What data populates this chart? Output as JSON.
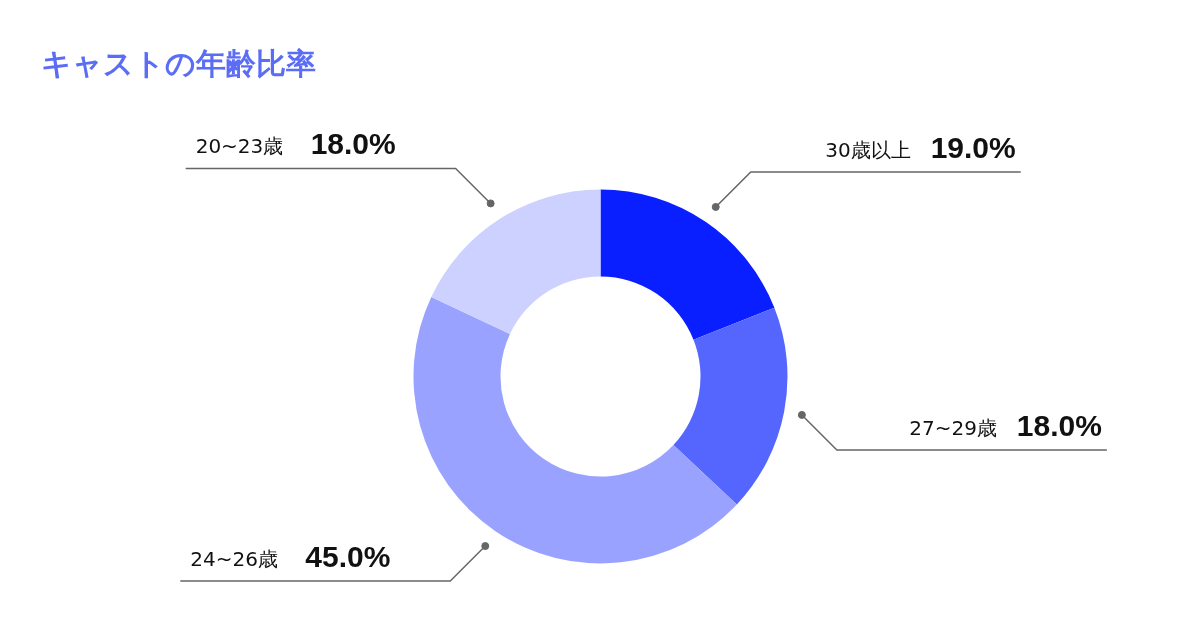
{
  "chart_data": {
    "type": "donut",
    "title": "キャストの年齢比率",
    "categories": [
      "30歳以上",
      "27~29歳",
      "24~26歳",
      "20~23歳"
    ],
    "values": [
      19,
      18,
      45,
      18
    ],
    "colors": [
      "#0a1fff",
      "#5566ff",
      "#99a3ff",
      "#ccd1ff"
    ],
    "value_labels": [
      "19.0%",
      "18.0%",
      "45.0%",
      "18.0%"
    ]
  }
}
